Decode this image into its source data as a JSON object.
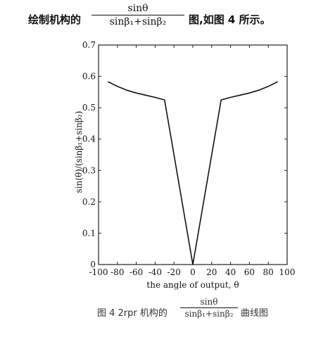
{
  "header": {
    "lead": "绘制机构的",
    "frac_num": "sinθ",
    "frac_den": "sinβ₁+sinβ₂",
    "tail": "图,如图 4 所示。"
  },
  "caption": {
    "lead": "图 4  2rpr 机构的",
    "frac_num": "sinθ",
    "frac_den": "sinβ₁+sinβ₂",
    "tail": "曲线图"
  },
  "chart_data": {
    "type": "line",
    "title": "",
    "xlabel": "the angle of output, θ",
    "ylabel": "sin(θ)/(sinβ₁+sinβ₂)",
    "xlim": [
      -100,
      100
    ],
    "ylim": [
      0,
      0.7
    ],
    "xticks": [
      -100,
      -80,
      -60,
      -40,
      -20,
      0,
      20,
      40,
      60,
      80,
      100
    ],
    "yticks": [
      0,
      0.1,
      0.2,
      0.3,
      0.4,
      0.5,
      0.6,
      0.7
    ],
    "grid": false,
    "series": [
      {
        "x": [
          -90,
          -80,
          -70,
          -60,
          -50,
          -40,
          -30,
          0,
          30,
          40,
          50,
          60,
          70,
          80,
          90
        ],
        "y": [
          0.583,
          0.568,
          0.556,
          0.547,
          0.54,
          0.533,
          0.525,
          0.0,
          0.525,
          0.533,
          0.54,
          0.547,
          0.556,
          0.568,
          0.583
        ]
      }
    ]
  }
}
